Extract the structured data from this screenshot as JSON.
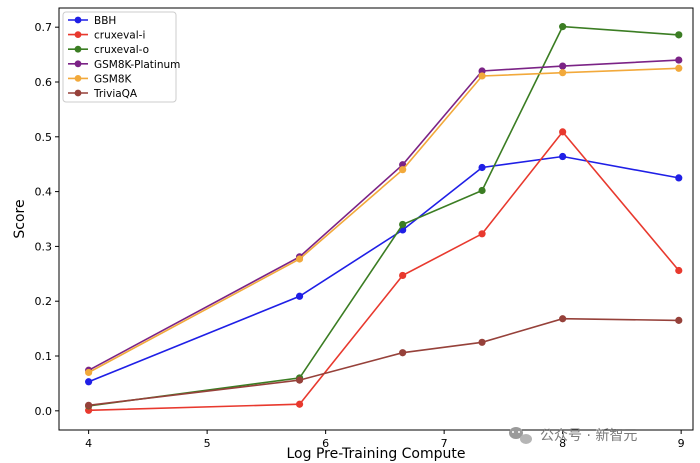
{
  "chart_data": {
    "type": "line",
    "title": "",
    "xlabel": "Log Pre-Training Compute",
    "ylabel": "Score",
    "xlim": [
      3.75,
      9.1
    ],
    "ylim": [
      -0.035,
      0.735
    ],
    "xticks": [
      4,
      5,
      6,
      7,
      8,
      9
    ],
    "yticks": [
      0.0,
      0.1,
      0.2,
      0.3,
      0.4,
      0.5,
      0.6,
      0.7
    ],
    "grid": false,
    "legend_position": "top-left",
    "x": [
      4.0,
      5.78,
      6.65,
      7.32,
      8.0,
      8.98
    ],
    "series": [
      {
        "name": "BBH",
        "color": "#1f1fe6",
        "values": [
          0.053,
          0.209,
          0.33,
          0.444,
          0.464,
          0.425
        ]
      },
      {
        "name": "cruxeval-i",
        "color": "#e8392e",
        "values": [
          0.001,
          0.012,
          0.247,
          0.323,
          0.509,
          0.256
        ]
      },
      {
        "name": "cruxeval-o",
        "color": "#3b7d23",
        "values": [
          0.009,
          0.06,
          0.34,
          0.402,
          0.701,
          0.686
        ]
      },
      {
        "name": "GSM8K-Platinum",
        "color": "#7b2386",
        "values": [
          0.074,
          0.281,
          0.449,
          0.62,
          0.629,
          0.64
        ]
      },
      {
        "name": "GSM8K",
        "color": "#f2a93b",
        "values": [
          0.07,
          0.277,
          0.44,
          0.611,
          0.617,
          0.625
        ]
      },
      {
        "name": "TriviaQA",
        "color": "#96413a",
        "values": [
          0.01,
          0.056,
          0.106,
          0.125,
          0.168,
          0.165
        ]
      }
    ]
  },
  "watermark": {
    "icon": "wechat-icon",
    "text": "公众号 · 新智元"
  }
}
